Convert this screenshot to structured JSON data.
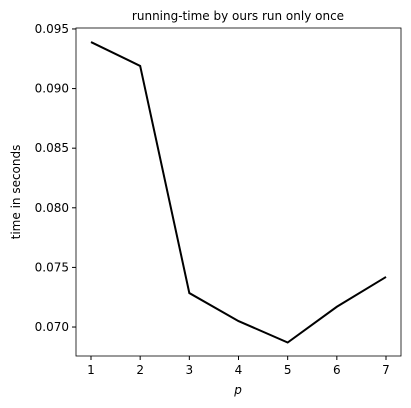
{
  "chart_data": {
    "type": "line",
    "title": "running-time by ours run only once",
    "x_label": "p",
    "y_label": "time in seconds",
    "x": [
      1,
      2,
      3,
      4,
      5,
      6,
      7
    ],
    "series": [
      {
        "name": "running-time",
        "color": "#000000",
        "values": [
          0.0939,
          0.0919,
          0.07285,
          0.0705,
          0.0687,
          0.0717,
          0.0742
        ]
      }
    ],
    "xlim": [
      0.695,
      7.305
    ],
    "ylim": [
      0.06757,
      0.09508
    ],
    "xticks": [
      1,
      2,
      3,
      4,
      5,
      6,
      7
    ],
    "yticks": [
      {
        "value": 0.07,
        "label": "0.070"
      },
      {
        "value": 0.075,
        "label": "0.075"
      },
      {
        "value": 0.08,
        "label": "0.080"
      },
      {
        "value": 0.085,
        "label": "0.085"
      },
      {
        "value": 0.09,
        "label": "0.090"
      },
      {
        "value": 0.095,
        "label": "0.095"
      }
    ]
  }
}
